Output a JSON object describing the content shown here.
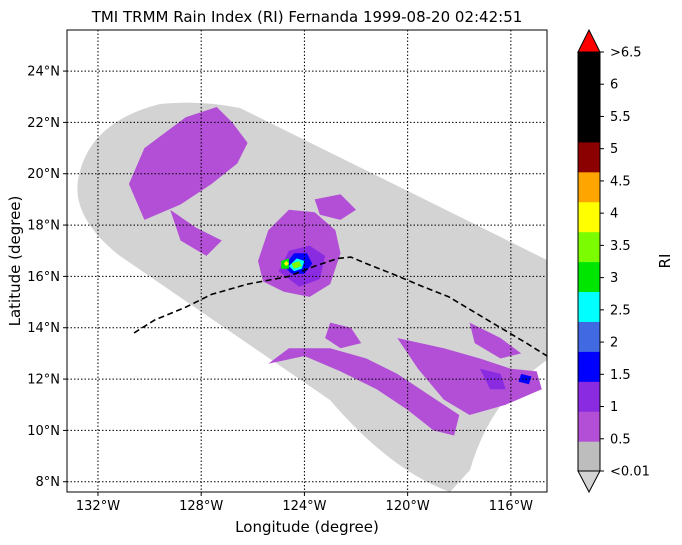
{
  "chart_data": {
    "type": "heatmap",
    "title": "TMI TRMM Rain Index (RI) Fernanda 1999-08-20 02:42:51",
    "xlabel": "Longitude (degree)",
    "ylabel": "Latitude (degree)",
    "xlim": [
      -133.2,
      -114.6
    ],
    "ylim": [
      7.6,
      25.6
    ],
    "xticks": [
      {
        "value": -132,
        "label": "132°W"
      },
      {
        "value": -128,
        "label": "128°W"
      },
      {
        "value": -124,
        "label": "124°W"
      },
      {
        "value": -120,
        "label": "120°W"
      },
      {
        "value": -116,
        "label": "116°W"
      }
    ],
    "yticks": [
      {
        "value": 8,
        "label": "8°N"
      },
      {
        "value": 10,
        "label": "10°N"
      },
      {
        "value": 12,
        "label": "12°N"
      },
      {
        "value": 14,
        "label": "14°N"
      },
      {
        "value": 16,
        "label": "16°N"
      },
      {
        "value": 18,
        "label": "18°N"
      },
      {
        "value": 20,
        "label": "20°N"
      },
      {
        "value": 22,
        "label": "22°N"
      },
      {
        "value": 24,
        "label": "24°N"
      }
    ],
    "grid": true,
    "grid_style": "dotted",
    "colorbar": {
      "label": "RI",
      "levels": [
        {
          "label": "<0.01",
          "color": "#bdbdbd"
        },
        {
          "label": "0.5",
          "color": "#b24fd6"
        },
        {
          "label": "1",
          "color": "#8a2be2"
        },
        {
          "label": "1.5",
          "color": "#0000ff"
        },
        {
          "label": "2",
          "color": "#4169e1"
        },
        {
          "label": "2.5",
          "color": "#00ffff"
        },
        {
          "label": "3",
          "color": "#00e600"
        },
        {
          "label": "3.5",
          "color": "#7cfc00"
        },
        {
          "label": "4",
          "color": "#ffff00"
        },
        {
          "label": "4.5",
          "color": "#ffa500"
        },
        {
          "label": "5",
          "color": "#8b0000"
        },
        {
          "label": "5.5",
          "color": "#000000"
        },
        {
          "label": "6",
          "color": "#000000"
        },
        {
          "label": ">6.5",
          "color": "#000000"
        }
      ],
      "tick_labels": [
        "<0.01",
        "0.5",
        "1",
        "1.5",
        "2",
        "2.5",
        "3",
        "3.5",
        "4",
        "4.5",
        "5",
        "5.5",
        "6",
        ">6.5"
      ],
      "over_color": "#ff0000",
      "under_color": "#d3d3d3"
    },
    "swath_color": "#d3d3d3",
    "track": {
      "style": "dashed",
      "color": "#000000",
      "points": [
        [
          -130.6,
          13.8
        ],
        [
          -129.8,
          14.3
        ],
        [
          -128.6,
          14.8
        ],
        [
          -127.6,
          15.3
        ],
        [
          -126.2,
          15.7
        ],
        [
          -124.6,
          16.0
        ],
        [
          -123.6,
          16.4
        ],
        [
          -122.7,
          16.7
        ],
        [
          -122.2,
          16.75
        ],
        [
          -121.6,
          16.5
        ],
        [
          -120.6,
          16.1
        ],
        [
          -119.4,
          15.6
        ],
        [
          -118.4,
          15.2
        ],
        [
          -117.4,
          14.6
        ],
        [
          -116.4,
          14.0
        ],
        [
          -115.4,
          13.4
        ],
        [
          -114.6,
          12.9
        ]
      ]
    },
    "rain_regions": [
      {
        "level": "0.5",
        "color": "#b24fd6",
        "points": [
          [
            -130.8,
            19.6
          ],
          [
            -130.2,
            21.0
          ],
          [
            -128.6,
            22.2
          ],
          [
            -127.4,
            22.6
          ],
          [
            -126.8,
            22.0
          ],
          [
            -126.2,
            21.2
          ],
          [
            -126.6,
            20.4
          ],
          [
            -127.6,
            19.6
          ],
          [
            -128.8,
            18.8
          ],
          [
            -130.2,
            18.2
          ]
        ]
      },
      {
        "level": "0.5",
        "color": "#b24fd6",
        "points": [
          [
            -129.2,
            18.6
          ],
          [
            -128.2,
            17.9
          ],
          [
            -127.2,
            17.4
          ],
          [
            -127.8,
            16.8
          ],
          [
            -128.8,
            17.4
          ]
        ]
      },
      {
        "level": "0.5",
        "color": "#b24fd6",
        "points": [
          [
            -125.8,
            16.6
          ],
          [
            -125.4,
            17.8
          ],
          [
            -124.6,
            18.6
          ],
          [
            -123.6,
            18.5
          ],
          [
            -122.8,
            17.8
          ],
          [
            -122.6,
            16.9
          ],
          [
            -123.0,
            15.7
          ],
          [
            -123.8,
            15.2
          ],
          [
            -124.8,
            15.4
          ],
          [
            -125.6,
            15.8
          ]
        ]
      },
      {
        "level": "0.5",
        "color": "#b24fd6",
        "points": [
          [
            -123.6,
            19.0
          ],
          [
            -122.6,
            19.2
          ],
          [
            -122.0,
            18.6
          ],
          [
            -122.6,
            18.2
          ],
          [
            -123.4,
            18.4
          ]
        ]
      },
      {
        "level": "0.5",
        "color": "#b24fd6",
        "points": [
          [
            -123.0,
            14.2
          ],
          [
            -122.2,
            14.0
          ],
          [
            -121.8,
            13.4
          ],
          [
            -122.6,
            13.2
          ],
          [
            -123.2,
            13.6
          ]
        ]
      },
      {
        "level": "0.5",
        "color": "#b24fd6",
        "points": [
          [
            -125.4,
            12.6
          ],
          [
            -124.0,
            12.9
          ],
          [
            -122.6,
            12.3
          ],
          [
            -121.2,
            11.6
          ],
          [
            -120.0,
            10.8
          ],
          [
            -119.0,
            10.0
          ],
          [
            -118.2,
            9.8
          ],
          [
            -118.0,
            10.6
          ],
          [
            -119.2,
            11.4
          ],
          [
            -120.4,
            12.2
          ],
          [
            -121.6,
            12.8
          ],
          [
            -123.0,
            13.2
          ],
          [
            -124.6,
            13.2
          ]
        ]
      },
      {
        "level": "0.5",
        "color": "#b24fd6",
        "points": [
          [
            -120.4,
            13.6
          ],
          [
            -118.6,
            13.2
          ],
          [
            -117.2,
            12.8
          ],
          [
            -116.0,
            12.4
          ],
          [
            -115.0,
            12.3
          ],
          [
            -114.8,
            11.6
          ],
          [
            -116.2,
            11.0
          ],
          [
            -117.6,
            10.6
          ],
          [
            -118.6,
            11.2
          ],
          [
            -119.6,
            12.4
          ]
        ]
      },
      {
        "level": "0.5",
        "color": "#b24fd6",
        "points": [
          [
            -117.6,
            14.2
          ],
          [
            -116.4,
            13.6
          ],
          [
            -115.6,
            13.0
          ],
          [
            -116.4,
            12.8
          ],
          [
            -117.4,
            13.4
          ]
        ]
      },
      {
        "level": "1",
        "color": "#8a2be2",
        "points": [
          [
            -125.0,
            16.2
          ],
          [
            -124.6,
            17.0
          ],
          [
            -123.8,
            17.2
          ],
          [
            -123.2,
            16.8
          ],
          [
            -123.4,
            15.9
          ],
          [
            -124.2,
            15.6
          ]
        ]
      },
      {
        "level": "1",
        "color": "#8a2be2",
        "points": [
          [
            -117.2,
            12.4
          ],
          [
            -116.4,
            12.2
          ],
          [
            -116.2,
            11.6
          ],
          [
            -116.8,
            11.6
          ]
        ]
      },
      {
        "level": "1.5",
        "color": "#0000ff",
        "points": [
          [
            -124.8,
            16.4
          ],
          [
            -124.4,
            16.9
          ],
          [
            -123.9,
            16.9
          ],
          [
            -123.7,
            16.5
          ],
          [
            -124.0,
            16.1
          ],
          [
            -124.5,
            16.1
          ]
        ]
      },
      {
        "level": "1.5",
        "color": "#0000ff",
        "points": [
          [
            -115.6,
            12.2
          ],
          [
            -115.2,
            12.1
          ],
          [
            -115.3,
            11.8
          ],
          [
            -115.7,
            11.9
          ]
        ]
      },
      {
        "level": "2.5",
        "color": "#00ffff",
        "points": [
          [
            -124.6,
            16.4
          ],
          [
            -124.3,
            16.7
          ],
          [
            -124.0,
            16.6
          ],
          [
            -124.1,
            16.3
          ],
          [
            -124.4,
            16.2
          ]
        ]
      },
      {
        "level": "3",
        "color": "#00e600",
        "points": [
          [
            -124.9,
            16.6
          ],
          [
            -124.6,
            16.7
          ],
          [
            -124.6,
            16.3
          ],
          [
            -124.9,
            16.3
          ]
        ]
      },
      {
        "level": "3.5",
        "color": "#7cfc00",
        "points": [
          [
            -124.5,
            16.5
          ],
          [
            -124.2,
            16.6
          ],
          [
            -124.1,
            16.4
          ],
          [
            -124.4,
            16.3
          ]
        ]
      },
      {
        "level": "4",
        "color": "#ffff00",
        "points": [
          [
            -124.8,
            16.5
          ],
          [
            -124.7,
            16.6
          ],
          [
            -124.6,
            16.5
          ],
          [
            -124.7,
            16.4
          ]
        ]
      }
    ]
  }
}
